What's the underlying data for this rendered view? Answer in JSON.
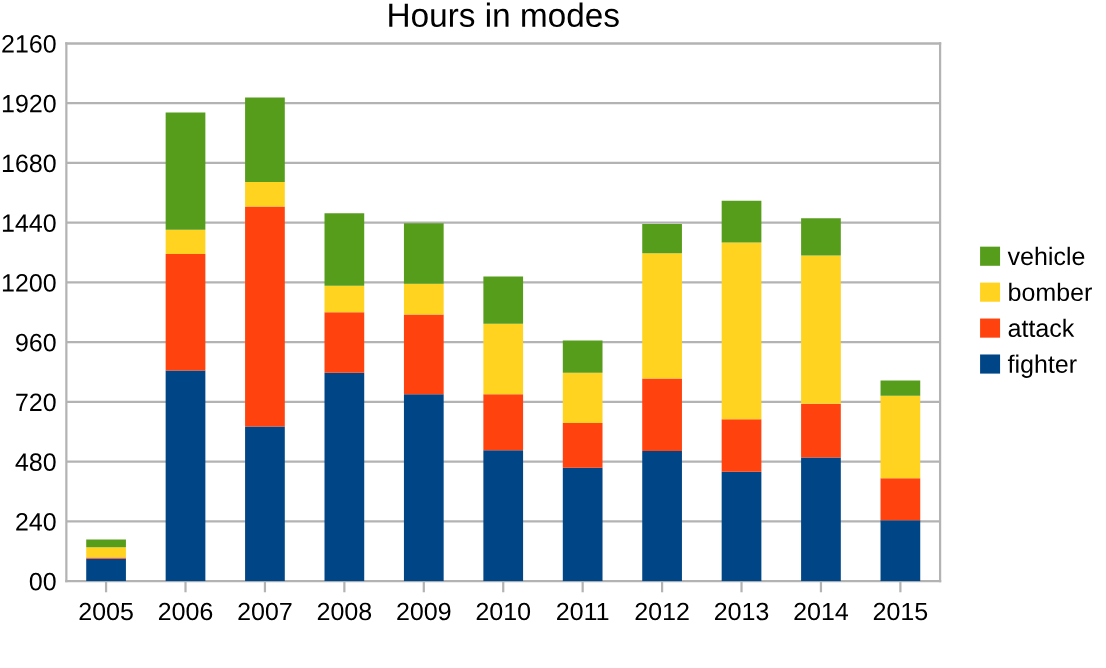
{
  "chart_data": {
    "type": "bar",
    "title": "Hours in modes",
    "stacked": true,
    "categories": [
      "2005",
      "2006",
      "2007",
      "2008",
      "2009",
      "2010",
      "2011",
      "2012",
      "2013",
      "2014",
      "2015"
    ],
    "series": [
      {
        "name": "fighter",
        "color": "#004586",
        "values": [
          90,
          846,
          621,
          837,
          751,
          526,
          456,
          523,
          439,
          497,
          245
        ]
      },
      {
        "name": "attack",
        "color": "#ff420e",
        "values": [
          5,
          468,
          884,
          243,
          320,
          225,
          179,
          291,
          211,
          216,
          168
        ]
      },
      {
        "name": "bomber",
        "color": "#ffd320",
        "values": [
          41,
          98,
          98,
          107,
          124,
          283,
          202,
          503,
          710,
          595,
          332
        ]
      },
      {
        "name": "vehicle",
        "color": "#579d1c",
        "values": [
          31,
          471,
          340,
          291,
          243,
          190,
          130,
          118,
          168,
          150,
          61
        ]
      }
    ],
    "ylim": [
      0,
      2160
    ],
    "yticks": [
      {
        "value": 0,
        "label": "00"
      },
      240,
      480,
      720,
      960,
      1200,
      1440,
      1680,
      1920,
      2160
    ],
    "grid": "y",
    "legend": "right"
  }
}
